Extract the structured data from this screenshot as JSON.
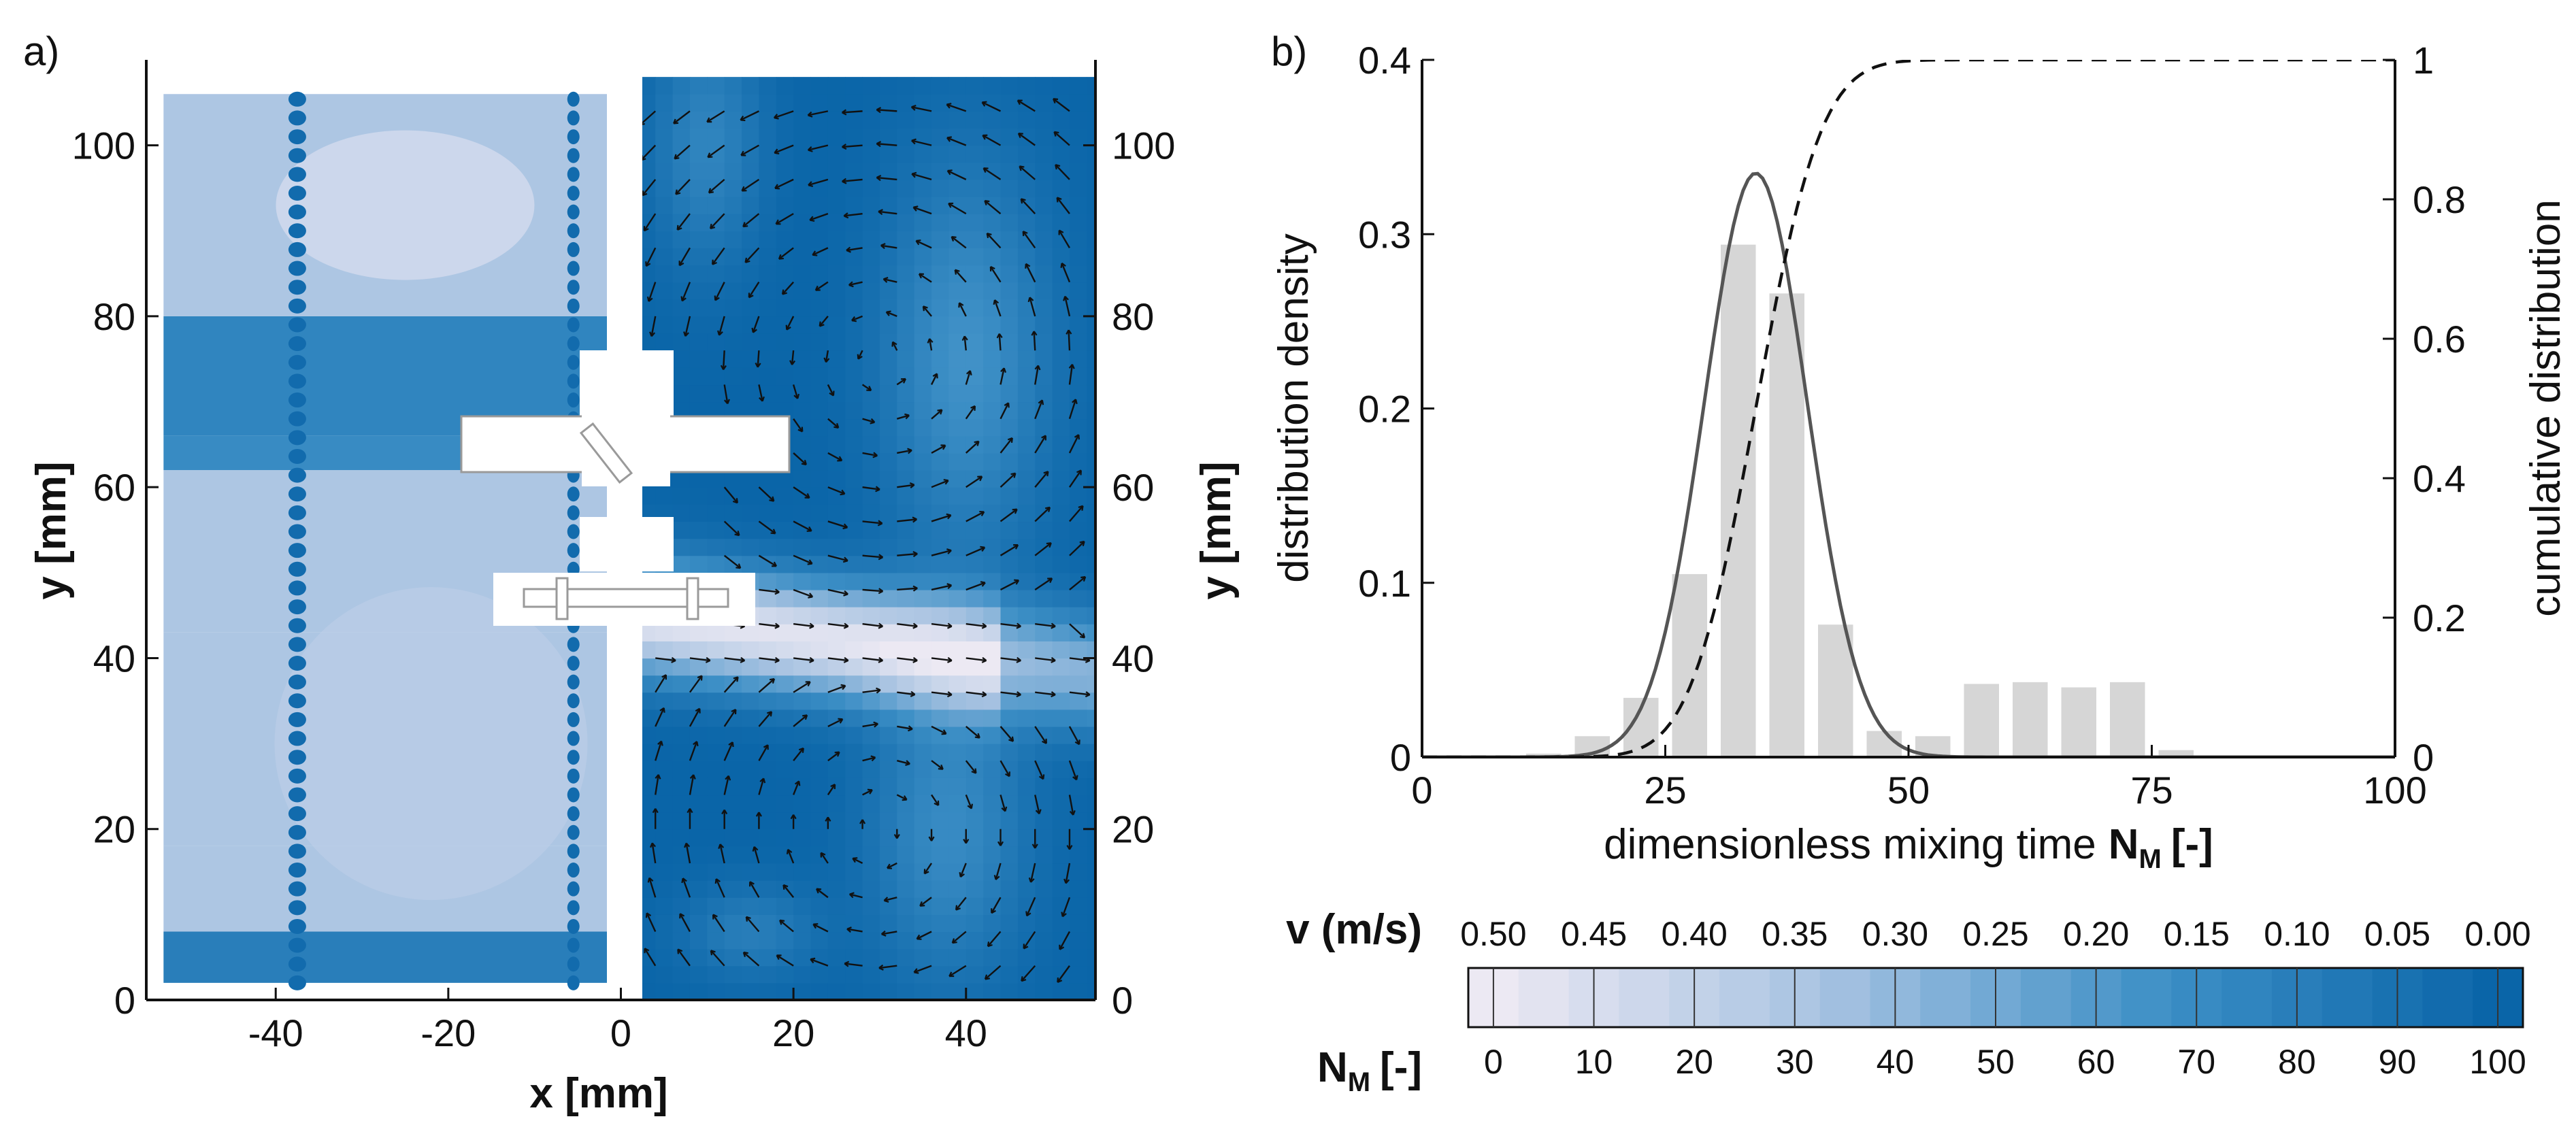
{
  "colors": {
    "map_dark": "#0a65a8",
    "map_mid": "#3d8fc6",
    "map_light": "#a6c2e1",
    "map_lightest": "#ece9f3",
    "hist_bar": "#d6d6d6",
    "fit_line": "#555555",
    "axis": "#111111"
  },
  "chart_data": [
    {
      "panel_label": "a)",
      "type": "heatmap",
      "xlabel": "x [mm]",
      "ylabel": "y [mm]",
      "ylabel_right": "y [mm]",
      "xlim": [
        -55,
        55
      ],
      "ylim": [
        0,
        110
      ],
      "xticks": [
        "-40",
        "-20",
        "0",
        "20",
        "40"
      ],
      "yticks": [
        "0",
        "20",
        "40",
        "60",
        "80",
        "100"
      ],
      "xtick_values": [
        -40,
        -20,
        0,
        20,
        40
      ],
      "ytick_values": [
        0,
        20,
        40,
        60,
        80,
        100
      ],
      "left_half_quantity": "N_M",
      "right_half_quantity": "v (m/s)",
      "left_bands": [
        {
          "y0": 2,
          "y1": 8,
          "value": 80
        },
        {
          "y0": 8,
          "y1": 18,
          "value": 30
        },
        {
          "y0": 18,
          "y1": 43,
          "value": 30
        },
        {
          "y0": 43,
          "y1": 62,
          "value": 30
        },
        {
          "y0": 62,
          "y1": 66,
          "value": 70
        },
        {
          "y0": 66,
          "y1": 80,
          "value": 75
        },
        {
          "y0": 80,
          "y1": 106,
          "value": 30
        }
      ],
      "vector_field_region": {
        "x": [
          2,
          54
        ],
        "y": [
          1,
          107
        ]
      }
    },
    {
      "panel_label": "b)",
      "type": "bar",
      "xlabel": "dimensionless mixing time",
      "xlabel_symbol": "N",
      "xlabel_subscript": "M",
      "xlabel_unit": "[-]",
      "ylabel": "distribution density",
      "ylabel_right": "cumulative distribution",
      "xlim": [
        0,
        100
      ],
      "ylim": [
        0,
        0.4
      ],
      "ylim_right": [
        0,
        1
      ],
      "xticks": [
        "0",
        "25",
        "50",
        "75",
        "100"
      ],
      "yticks": [
        "0",
        "0.1",
        "0.2",
        "0.3",
        "0.4"
      ],
      "yticks_right": [
        "0",
        "0.2",
        "0.4",
        "0.6",
        "0.8",
        "1"
      ],
      "bar_centers": [
        12.5,
        17.5,
        22.5,
        27.5,
        32.5,
        37.5,
        42.5,
        47.5,
        52.5,
        57.5,
        62.5,
        67.5,
        72.5,
        77.5
      ],
      "bar_width": 3.6,
      "values": [
        0.002,
        0.012,
        0.034,
        0.105,
        0.294,
        0.266,
        0.076,
        0.015,
        0.012,
        0.042,
        0.043,
        0.04,
        0.043,
        0.004
      ],
      "fit": {
        "type": "normal",
        "mean": 34.3,
        "sd": 5.3,
        "peak": 0.335
      },
      "cumulative": {
        "type": "normal_cdf",
        "mean": 34.3,
        "sd": 5.3
      }
    }
  ],
  "colorbar": {
    "v_label": "v (m/s)",
    "n_label_symbol": "N",
    "n_label_subscript": "M",
    "n_label_unit": "[-]",
    "v_ticks": [
      "0.50",
      "0.45",
      "0.40",
      "0.35",
      "0.30",
      "0.25",
      "0.20",
      "0.15",
      "0.10",
      "0.05",
      "0.00"
    ],
    "n_ticks": [
      "0",
      "10",
      "20",
      "30",
      "40",
      "50",
      "60",
      "70",
      "80",
      "90",
      "100"
    ],
    "n_range": [
      0,
      100
    ],
    "levels": 21
  }
}
